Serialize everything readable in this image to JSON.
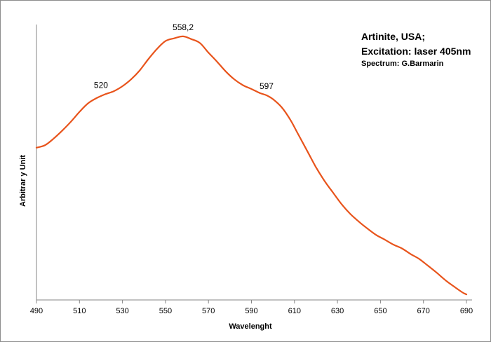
{
  "chart_data": {
    "type": "line",
    "title_lines": [
      "Artinite, USA;",
      "Excitation: laser 405nm"
    ],
    "credit": "Spectrum: G.Barmarin",
    "xlabel": "Wavelenght",
    "ylabel": "Arbitrar y Unit",
    "xlim": [
      490,
      690
    ],
    "ylim": [
      0,
      1
    ],
    "x_ticks": [
      "490",
      "510",
      "530",
      "550",
      "570",
      "590",
      "610",
      "630",
      "650",
      "670",
      "690"
    ],
    "grid": false,
    "series_color": "#e8541c",
    "series": [
      {
        "x": [
          490,
          494,
          498,
          502,
          506,
          510,
          514,
          518,
          522,
          526,
          530,
          534,
          538,
          542,
          546,
          550,
          554,
          558.2,
          562,
          566,
          570,
          574,
          578,
          582,
          586,
          590,
          594,
          597,
          600,
          604,
          608,
          612,
          616,
          620,
          624,
          628,
          632,
          636,
          640,
          644,
          648,
          652,
          656,
          660,
          664,
          668,
          672,
          676,
          680,
          684,
          688,
          690
        ],
        "y": [
          0.553,
          0.562,
          0.586,
          0.615,
          0.647,
          0.683,
          0.714,
          0.733,
          0.747,
          0.758,
          0.776,
          0.801,
          0.833,
          0.874,
          0.911,
          0.94,
          0.95,
          0.957,
          0.947,
          0.933,
          0.898,
          0.865,
          0.83,
          0.801,
          0.78,
          0.766,
          0.751,
          0.743,
          0.729,
          0.7,
          0.655,
          0.598,
          0.54,
          0.482,
          0.432,
          0.389,
          0.347,
          0.312,
          0.284,
          0.259,
          0.236,
          0.219,
          0.201,
          0.187,
          0.167,
          0.149,
          0.125,
          0.1,
          0.073,
          0.05,
          0.028,
          0.02
        ]
      }
    ],
    "annotations": [
      {
        "text": "520",
        "x": 520,
        "y": 0.747
      },
      {
        "text": "558,2",
        "x": 558.2,
        "y": 0.957
      },
      {
        "text": "597",
        "x": 597,
        "y": 0.743
      }
    ]
  }
}
